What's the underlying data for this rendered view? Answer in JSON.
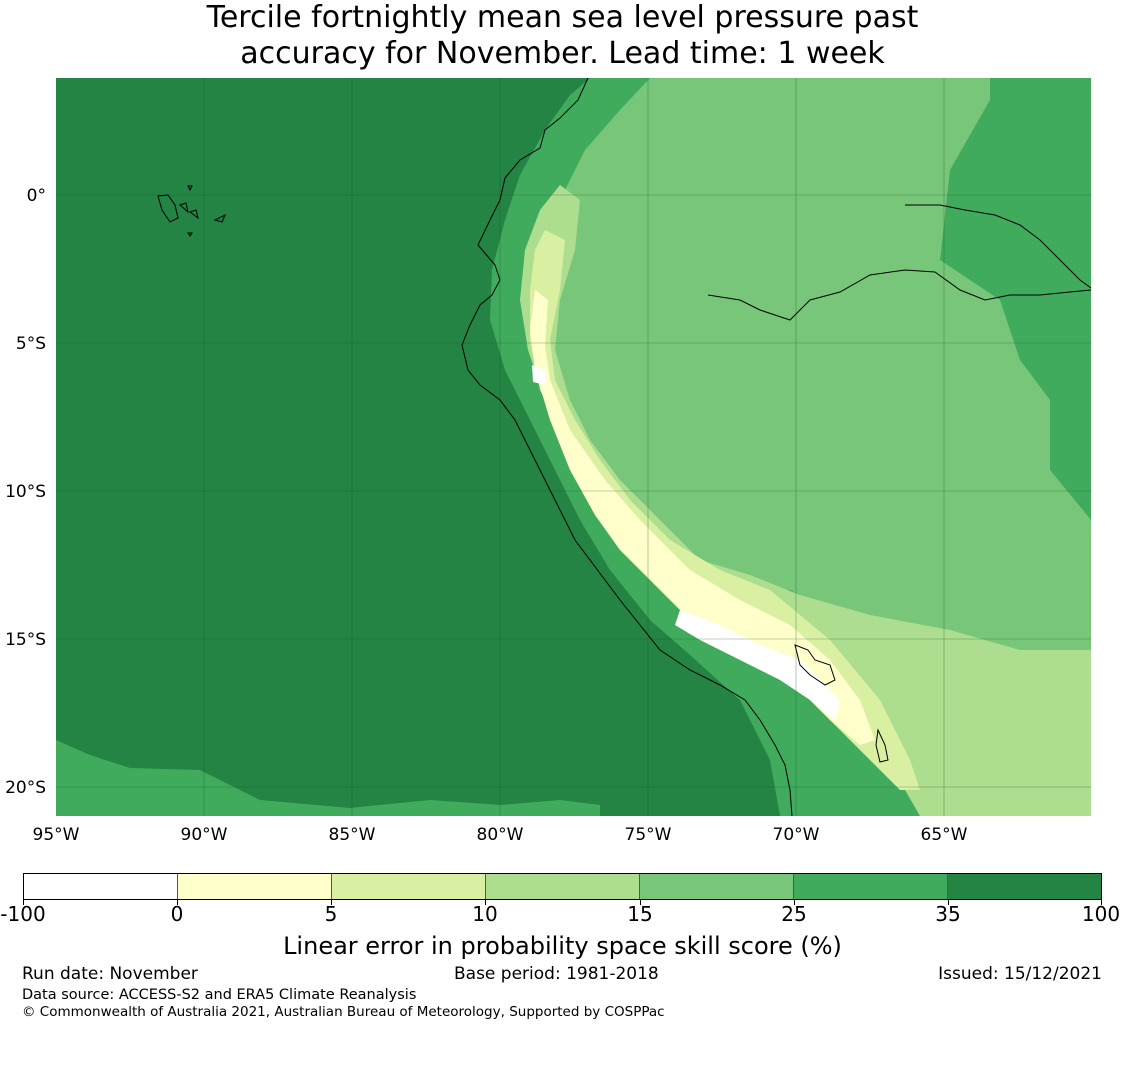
{
  "title": {
    "line1": "Tercile fortnightly mean sea level pressure past",
    "line2": "accuracy for November. Lead time: 1 week"
  },
  "map": {
    "lon_range": [
      -95,
      -60
    ],
    "lat_range": [
      -21,
      4
    ],
    "lon_ticks": [
      -95,
      -90,
      -85,
      -80,
      -75,
      -70,
      -65
    ],
    "lon_tick_labels": [
      "95°W",
      "90°W",
      "85°W",
      "80°W",
      "75°W",
      "70°W",
      "65°W"
    ],
    "lat_ticks": [
      0,
      -5,
      -10,
      -15,
      -20
    ],
    "lat_tick_labels": [
      "0°",
      "5°S",
      "10°S",
      "15°S",
      "20°S"
    ],
    "features": [
      "Galápagos Islands",
      "South American coastline (Colombia, Ecuador, Peru, Chile)",
      "Amazon River",
      "Lake Titicaca"
    ],
    "skill_colors": {
      "neg100_0": "#ffffff",
      "0_5": "#ffffcc",
      "5_10": "#d9f0a3",
      "10_15": "#addd8e",
      "15_25": "#78c679",
      "25_35": "#41ab5d",
      "35_100": "#238443"
    }
  },
  "colorbar": {
    "ticks": [
      "-100",
      "0",
      "5",
      "10",
      "15",
      "25",
      "35",
      "100"
    ],
    "colors": [
      "#ffffff",
      "#ffffcc",
      "#d9f0a3",
      "#addd8e",
      "#78c679",
      "#41ab5d",
      "#238443"
    ],
    "label": "Linear error in probability space skill score (%)"
  },
  "footer": {
    "run_date": "Run date: November",
    "base_period": "Base period: 1981-2018",
    "issued": "Issued: 15/12/2021",
    "data_source": "Data source: ACCESS-S2 and ERA5 Climate Reanalysis",
    "copyright": "© Commonwealth of Australia 2021, Australian Bureau of Meteorology, Supported by COSPPac"
  }
}
